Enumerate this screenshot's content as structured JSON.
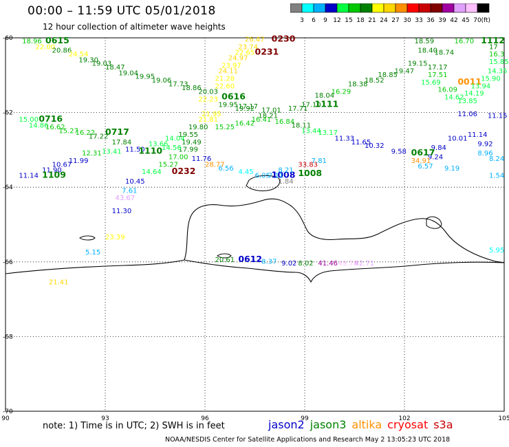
{
  "header": {
    "title": "00:00 – 11:59 UTC 05/01/2018",
    "subtitle": "12 hour collection of altimeter wave heights"
  },
  "colorbar": {
    "unit": "(ft)",
    "levels": [
      "3",
      "6",
      "9",
      "12",
      "15",
      "18",
      "21",
      "24",
      "27",
      "30",
      "33",
      "36",
      "39",
      "42",
      "45",
      "70"
    ],
    "colors": [
      "#808080",
      "#00ffff",
      "#00b0ff",
      "#0000c8",
      "#00ff40",
      "#00c800",
      "#008000",
      "#ffff00",
      "#ffd700",
      "#ff9000",
      "#ff0000",
      "#c80000",
      "#800000",
      "#a000a0",
      "#e0a0ff",
      "#ffc0ff",
      "#000000"
    ]
  },
  "map": {
    "lon_range": [
      90,
      105
    ],
    "lat_range": [
      -70,
      -60
    ],
    "x_ticks": [
      "90",
      "93",
      "96",
      "99",
      "102",
      "105"
    ],
    "y_ticks": [
      "-60",
      "-62",
      "-64",
      "-66",
      "-68",
      "-70"
    ],
    "labels": [
      {
        "t": "0615",
        "lon": 91.2,
        "lat": -60.15,
        "c": "#008000",
        "s": "large"
      },
      {
        "t": "18.96",
        "lon": 90.5,
        "lat": -60.15,
        "c": "#00c800"
      },
      {
        "t": "22.00",
        "lon": 90.9,
        "lat": -60.3,
        "c": "#ffff00"
      },
      {
        "t": "20.86",
        "lon": 91.4,
        "lat": -60.4,
        "c": "#008000"
      },
      {
        "t": "24.54",
        "lon": 91.9,
        "lat": -60.5,
        "c": "#ffff00"
      },
      {
        "t": "19.30",
        "lon": 92.2,
        "lat": -60.65,
        "c": "#008000"
      },
      {
        "t": "19.03",
        "lon": 92.6,
        "lat": -60.75,
        "c": "#008000"
      },
      {
        "t": "18.47",
        "lon": 93.0,
        "lat": -60.85,
        "c": "#008000"
      },
      {
        "t": "19.04",
        "lon": 93.4,
        "lat": -61.0,
        "c": "#008000"
      },
      {
        "t": "19.95",
        "lon": 93.9,
        "lat": -61.1,
        "c": "#008000"
      },
      {
        "t": "19.06",
        "lon": 94.4,
        "lat": -61.2,
        "c": "#008000"
      },
      {
        "t": "17.73",
        "lon": 94.9,
        "lat": -61.3,
        "c": "#008000"
      },
      {
        "t": "18.86",
        "lon": 95.3,
        "lat": -61.4,
        "c": "#008000"
      },
      {
        "t": "20.03",
        "lon": 95.8,
        "lat": -61.5,
        "c": "#008000"
      },
      {
        "t": "0230",
        "lon": 98.0,
        "lat": -60.1,
        "c": "#800000",
        "s": "large"
      },
      {
        "t": "26.47",
        "lon": 97.2,
        "lat": -60.1,
        "c": "#ffd700"
      },
      {
        "t": "23.74",
        "lon": 97.0,
        "lat": -60.3,
        "c": "#ffd700"
      },
      {
        "t": "0231",
        "lon": 97.5,
        "lat": -60.45,
        "c": "#800000",
        "s": "large"
      },
      {
        "t": "22.65",
        "lon": 96.9,
        "lat": -60.45,
        "c": "#ffff00"
      },
      {
        "t": "24.97",
        "lon": 96.7,
        "lat": -60.6,
        "c": "#ffd700"
      },
      {
        "t": "23.97",
        "lon": 96.5,
        "lat": -60.8,
        "c": "#ffff00"
      },
      {
        "t": "24.11",
        "lon": 96.4,
        "lat": -60.95,
        "c": "#ffd700"
      },
      {
        "t": "21.28",
        "lon": 96.3,
        "lat": -61.15,
        "c": "#ffff00"
      },
      {
        "t": "22.60",
        "lon": 96.3,
        "lat": -61.35,
        "c": "#ffff00"
      },
      {
        "t": "0616",
        "lon": 96.5,
        "lat": -61.65,
        "c": "#008000",
        "s": "large"
      },
      {
        "t": "22.23",
        "lon": 95.8,
        "lat": -61.7,
        "c": "#ffff00"
      },
      {
        "t": "19.95",
        "lon": 96.4,
        "lat": -61.85,
        "c": "#008000"
      },
      {
        "t": "19.92",
        "lon": 96.9,
        "lat": -61.95,
        "c": "#008000"
      },
      {
        "t": "21.95",
        "lon": 95.9,
        "lat": -62.1,
        "c": "#ffff00"
      },
      {
        "t": "21.81",
        "lon": 95.8,
        "lat": -62.25,
        "c": "#ffff00"
      },
      {
        "t": "19.80",
        "lon": 95.5,
        "lat": -62.45,
        "c": "#008000"
      },
      {
        "t": "15.25",
        "lon": 96.3,
        "lat": -62.45,
        "c": "#00c800"
      },
      {
        "t": "16.42",
        "lon": 96.9,
        "lat": -62.35,
        "c": "#00c800"
      },
      {
        "t": "19.55",
        "lon": 95.2,
        "lat": -62.65,
        "c": "#008000"
      },
      {
        "t": "19.49",
        "lon": 95.3,
        "lat": -62.85,
        "c": "#008000"
      },
      {
        "t": "17.99",
        "lon": 95.2,
        "lat": -63.05,
        "c": "#008000"
      },
      {
        "t": "17.00",
        "lon": 94.9,
        "lat": -63.25,
        "c": "#00c800"
      },
      {
        "t": "11.76",
        "lon": 95.6,
        "lat": -63.3,
        "c": "#0000c8"
      },
      {
        "t": "15.27",
        "lon": 94.6,
        "lat": -63.45,
        "c": "#00c800"
      },
      {
        "t": "14.64",
        "lon": 94.1,
        "lat": -63.65,
        "c": "#00ff40"
      },
      {
        "t": "0232",
        "lon": 95.0,
        "lat": -63.65,
        "c": "#800000",
        "s": "large"
      },
      {
        "t": "28.77",
        "lon": 96.0,
        "lat": -63.45,
        "c": "#ff9000"
      },
      {
        "t": "6.56",
        "lon": 96.4,
        "lat": -63.55,
        "c": "#00b0ff"
      },
      {
        "t": "4.45",
        "lon": 97.0,
        "lat": -63.65,
        "c": "#00ffff"
      },
      {
        "t": "10.45",
        "lon": 93.6,
        "lat": -63.9,
        "c": "#0000c8"
      },
      {
        "t": "7.61",
        "lon": 93.5,
        "lat": -64.15,
        "c": "#00b0ff"
      },
      {
        "t": "43.67",
        "lon": 93.3,
        "lat": -64.35,
        "c": "#e0a0ff"
      },
      {
        "t": "11.30",
        "lon": 93.2,
        "lat": -64.7,
        "c": "#0000c8"
      },
      {
        "t": "23.39",
        "lon": 93.0,
        "lat": -65.4,
        "c": "#ffff00"
      },
      {
        "t": "5.15",
        "lon": 92.4,
        "lat": -65.8,
        "c": "#00b0ff"
      },
      {
        "t": "21.41",
        "lon": 91.3,
        "lat": -66.6,
        "c": "#ffd700"
      },
      {
        "t": "0716",
        "lon": 91.0,
        "lat": -62.25,
        "c": "#008000",
        "s": "large"
      },
      {
        "t": "15.00",
        "lon": 90.4,
        "lat": -62.25,
        "c": "#00ff40"
      },
      {
        "t": "14.86",
        "lon": 90.7,
        "lat": -62.4,
        "c": "#00ff40"
      },
      {
        "t": "16.62",
        "lon": 91.2,
        "lat": -62.45,
        "c": "#00c800"
      },
      {
        "t": "15.27",
        "lon": 91.6,
        "lat": -62.55,
        "c": "#00c800"
      },
      {
        "t": "16.22",
        "lon": 92.1,
        "lat": -62.6,
        "c": "#00c800"
      },
      {
        "t": "0717",
        "lon": 93.0,
        "lat": -62.6,
        "c": "#008000",
        "s": "large"
      },
      {
        "t": "17.22",
        "lon": 92.5,
        "lat": -62.7,
        "c": "#008000"
      },
      {
        "t": "17.84",
        "lon": 93.2,
        "lat": -62.85,
        "c": "#008000"
      },
      {
        "t": "14.04",
        "lon": 94.8,
        "lat": -62.75,
        "c": "#00ff40"
      },
      {
        "t": "13.66",
        "lon": 94.3,
        "lat": -62.9,
        "c": "#00ff40"
      },
      {
        "t": "14.56",
        "lon": 94.7,
        "lat": -63.0,
        "c": "#00ff40"
      },
      {
        "t": "11.50",
        "lon": 93.6,
        "lat": -63.05,
        "c": "#0000c8"
      },
      {
        "t": "1110",
        "lon": 94.0,
        "lat": -63.1,
        "c": "#008000",
        "s": "large"
      },
      {
        "t": "12.31",
        "lon": 92.3,
        "lat": -63.15,
        "c": "#00c800"
      },
      {
        "t": "13.41",
        "lon": 92.9,
        "lat": -63.1,
        "c": "#00ff40"
      },
      {
        "t": "11.99",
        "lon": 91.9,
        "lat": -63.35,
        "c": "#0000c8"
      },
      {
        "t": "10.67",
        "lon": 91.4,
        "lat": -63.45,
        "c": "#0000c8"
      },
      {
        "t": "11.90",
        "lon": 91.1,
        "lat": -63.6,
        "c": "#0000c8"
      },
      {
        "t": "11.14",
        "lon": 90.4,
        "lat": -63.75,
        "c": "#0000c8"
      },
      {
        "t": "1109",
        "lon": 91.1,
        "lat": -63.75,
        "c": "#008000",
        "s": "large"
      },
      {
        "t": "17.01",
        "lon": 97.7,
        "lat": -62.0,
        "c": "#008000"
      },
      {
        "t": "18.21",
        "lon": 97.6,
        "lat": -62.15,
        "c": "#008000"
      },
      {
        "t": "16.41",
        "lon": 97.4,
        "lat": -62.25,
        "c": "#00c800"
      },
      {
        "t": "16.84",
        "lon": 98.1,
        "lat": -62.3,
        "c": "#00c800"
      },
      {
        "t": "18.11",
        "lon": 98.6,
        "lat": -62.4,
        "c": "#008000"
      },
      {
        "t": "17.71",
        "lon": 98.5,
        "lat": -61.95,
        "c": "#008000"
      },
      {
        "t": "17.10",
        "lon": 98.9,
        "lat": -61.85,
        "c": "#008000"
      },
      {
        "t": "1111",
        "lon": 99.3,
        "lat": -61.85,
        "c": "#008000",
        "s": "large"
      },
      {
        "t": "18.04",
        "lon": 99.3,
        "lat": -61.6,
        "c": "#008000"
      },
      {
        "t": "16.29",
        "lon": 99.8,
        "lat": -61.5,
        "c": "#00c800"
      },
      {
        "t": "18.38",
        "lon": 100.3,
        "lat": -61.3,
        "c": "#008000"
      },
      {
        "t": "18.52",
        "lon": 100.8,
        "lat": -61.2,
        "c": "#008000"
      },
      {
        "t": "18.85",
        "lon": 101.2,
        "lat": -61.05,
        "c": "#008000"
      },
      {
        "t": "19.47",
        "lon": 101.7,
        "lat": -60.95,
        "c": "#008000"
      },
      {
        "t": "19.15",
        "lon": 102.1,
        "lat": -60.75,
        "c": "#008000"
      },
      {
        "t": "18.59",
        "lon": 102.3,
        "lat": -60.15,
        "c": "#008000"
      },
      {
        "t": "18.40",
        "lon": 102.4,
        "lat": -60.4,
        "c": "#008000"
      },
      {
        "t": "18.74",
        "lon": 102.9,
        "lat": -60.45,
        "c": "#008000"
      },
      {
        "t": "16.70",
        "lon": 103.5,
        "lat": -60.15,
        "c": "#00c800"
      },
      {
        "t": "1112",
        "lon": 104.3,
        "lat": -60.15,
        "c": "#008000",
        "s": "large"
      },
      {
        "t": "17",
        "lon": 104.8,
        "lat": -60.3,
        "c": "#008000"
      },
      {
        "t": "16.3",
        "lon": 104.7,
        "lat": -60.5,
        "c": "#00c800"
      },
      {
        "t": "15.85",
        "lon": 104.6,
        "lat": -60.7,
        "c": "#00ff40"
      },
      {
        "t": "14.35",
        "lon": 104.5,
        "lat": -60.95,
        "c": "#00ff40"
      },
      {
        "t": "17.17",
        "lon": 102.7,
        "lat": -60.85,
        "c": "#008000"
      },
      {
        "t": "17.51",
        "lon": 102.7,
        "lat": -61.05,
        "c": "#00c800"
      },
      {
        "t": "15.69",
        "lon": 102.5,
        "lat": -61.25,
        "c": "#00ff40"
      },
      {
        "t": "16.09",
        "lon": 103.0,
        "lat": -61.45,
        "c": "#00c800"
      },
      {
        "t": "0011",
        "lon": 103.6,
        "lat": -61.25,
        "c": "#ff9000",
        "s": "large"
      },
      {
        "t": "13.94",
        "lon": 104.0,
        "lat": -61.35,
        "c": "#00ff40"
      },
      {
        "t": "15.90",
        "lon": 104.3,
        "lat": -61.15,
        "c": "#00ff40"
      },
      {
        "t": "14.19",
        "lon": 103.8,
        "lat": -61.55,
        "c": "#00ff40"
      },
      {
        "t": "14.62",
        "lon": 103.2,
        "lat": -61.65,
        "c": "#00ff40"
      },
      {
        "t": "13.85",
        "lon": 103.6,
        "lat": -61.75,
        "c": "#00ff40"
      },
      {
        "t": "17.17",
        "lon": 97.0,
        "lat": -61.9,
        "c": "#008000"
      },
      {
        "t": "13.44",
        "lon": 98.9,
        "lat": -62.55,
        "c": "#00ff40"
      },
      {
        "t": "13.17",
        "lon": 99.4,
        "lat": -62.6,
        "c": "#00ff40"
      },
      {
        "t": "11.33",
        "lon": 99.9,
        "lat": -62.75,
        "c": "#0000c8"
      },
      {
        "t": "11.65",
        "lon": 100.4,
        "lat": -62.85,
        "c": "#0000c8"
      },
      {
        "t": "10.32",
        "lon": 100.8,
        "lat": -62.95,
        "c": "#0000c8"
      },
      {
        "t": "10.01",
        "lon": 103.3,
        "lat": -62.75,
        "c": "#0000c8"
      },
      {
        "t": "11.14",
        "lon": 103.9,
        "lat": -62.65,
        "c": "#0000c8"
      },
      {
        "t": "11.06",
        "lon": 103.6,
        "lat": -62.1,
        "c": "#0000c8"
      },
      {
        "t": "11.15",
        "lon": 104.5,
        "lat": -62.15,
        "c": "#0000c8"
      },
      {
        "t": "9.92",
        "lon": 104.2,
        "lat": -62.9,
        "c": "#0000c8"
      },
      {
        "t": "8.96",
        "lon": 104.2,
        "lat": -63.15,
        "c": "#00b0ff"
      },
      {
        "t": "8.24",
        "lon": 104.6,
        "lat": -63.3,
        "c": "#00b0ff"
      },
      {
        "t": "9.84",
        "lon": 102.8,
        "lat": -63.0,
        "c": "#0000c8"
      },
      {
        "t": "9.24",
        "lon": 102.7,
        "lat": -63.25,
        "c": "#0000c8"
      },
      {
        "t": "0617",
        "lon": 102.2,
        "lat": -63.15,
        "c": "#008000",
        "s": "large"
      },
      {
        "t": "9.58",
        "lon": 101.6,
        "lat": -63.1,
        "c": "#0000c8"
      },
      {
        "t": "34.91",
        "lon": 102.2,
        "lat": -63.35,
        "c": "#ff9000"
      },
      {
        "t": "6.57",
        "lon": 102.4,
        "lat": -63.5,
        "c": "#00b0ff"
      },
      {
        "t": "9.19",
        "lon": 103.2,
        "lat": -63.55,
        "c": "#00b0ff"
      },
      {
        "t": "1.54",
        "lon": 104.7,
        "lat": -63.75,
        "c": "#00b0ff"
      },
      {
        "t": "33.83",
        "lon": 98.8,
        "lat": -63.45,
        "c": "#c80000"
      },
      {
        "t": "7.81",
        "lon": 99.2,
        "lat": -63.35,
        "c": "#00b0ff"
      },
      {
        "t": "1008",
        "lon": 98.0,
        "lat": -63.75,
        "c": "#0000c8",
        "s": "large"
      },
      {
        "t": "1008",
        "lon": 98.8,
        "lat": -63.7,
        "c": "#008000",
        "s": "large"
      },
      {
        "t": "6.05",
        "lon": 97.5,
        "lat": -63.75,
        "c": "#00b0ff"
      },
      {
        "t": "7.11",
        "lon": 97.9,
        "lat": -63.75,
        "c": "#00b0ff"
      },
      {
        "t": "8.21",
        "lon": 98.2,
        "lat": -63.6,
        "c": "#00b0ff"
      },
      {
        "t": "1.84",
        "lon": 98.2,
        "lat": -63.9,
        "c": "#808080"
      },
      {
        "t": "5.95",
        "lon": 104.7,
        "lat": -65.75,
        "c": "#00ffff"
      },
      {
        "t": "20.61",
        "lon": 96.3,
        "lat": -66.0,
        "c": "#008000"
      },
      {
        "t": "0612",
        "lon": 97.0,
        "lat": -66.0,
        "c": "#0000c8",
        "s": "large"
      },
      {
        "t": "8.37",
        "lon": 97.7,
        "lat": -66.05,
        "c": "#00b0ff"
      },
      {
        "t": "9.02",
        "lon": 98.3,
        "lat": -66.1,
        "c": "#0000c8"
      },
      {
        "t": "8.02",
        "lon": 98.8,
        "lat": -66.1,
        "c": "#008000"
      },
      {
        "t": "41.46",
        "lon": 99.4,
        "lat": -66.1,
        "c": "#a000a0"
      },
      {
        "t": "49.78",
        "lon": 100.0,
        "lat": -66.1,
        "c": "#ffc0ff"
      },
      {
        "t": "42.71",
        "lon": 100.5,
        "lat": -66.1,
        "c": "#e0a0ff"
      }
    ]
  },
  "footnote": "note: 1) Time is in UTC; 2) SWH is in feet",
  "legend": [
    {
      "label": "jason2",
      "color": "#0000c8"
    },
    {
      "label": "jason3",
      "color": "#008000"
    },
    {
      "label": "altika",
      "color": "#ff9000"
    },
    {
      "label": "cryosat",
      "color": "#ff0000"
    },
    {
      "label": "s3a",
      "color": "#c80000"
    }
  ],
  "credit": "NOAA/NESDIS Center for Satellite Applications and Research   May  2 13:05:23 UTC 2018"
}
